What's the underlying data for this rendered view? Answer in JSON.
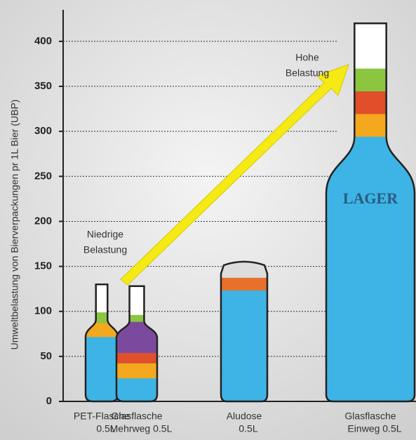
{
  "chart_data": {
    "type": "bar",
    "y_label": "Umweltbelastung von Bierverpackungen pr 1L Bier (UBP)",
    "categories": [
      [
        "PET-Flasche",
        "0.5L"
      ],
      [
        "Glasflasche",
        "Mehrweg 0.5L"
      ],
      [
        "Aludose",
        "0.5L"
      ],
      [
        "Glasflasche",
        "Einweg 0.5L"
      ]
    ],
    "values": [
      130,
      128,
      156,
      420
    ],
    "color": "#3db4e5",
    "ylim": [
      0,
      435
    ],
    "yticks": [
      0,
      50,
      100,
      150,
      200,
      250,
      300,
      350,
      400
    ],
    "grid": true,
    "annotations": [
      [
        "Niedrige",
        "Belastung"
      ],
      [
        "Hohe",
        "Belastung"
      ]
    ],
    "bottle_label": "LAGER"
  }
}
